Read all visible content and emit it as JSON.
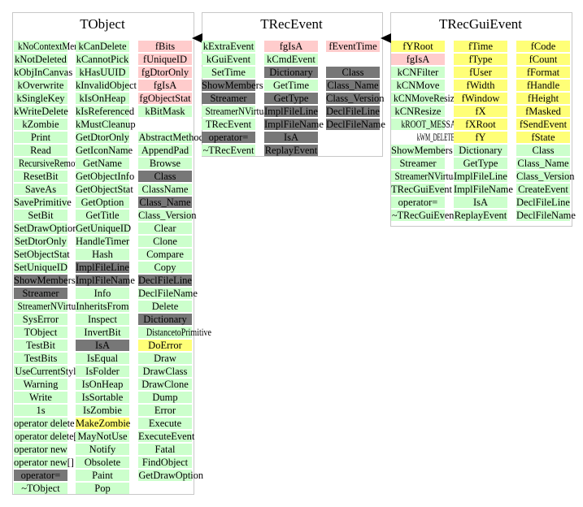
{
  "classes": [
    {
      "name": "TObject",
      "columns": [
        [
          [
            "kNoContextMenu",
            "g"
          ],
          [
            "kNotDeleted",
            "g"
          ],
          [
            "kObjInCanvas",
            "g"
          ],
          [
            "kOverwrite",
            "g"
          ],
          [
            "kSingleKey",
            "g"
          ],
          [
            "kWriteDelete",
            "g"
          ],
          [
            "kZombie",
            "g"
          ],
          [
            "Print",
            "g"
          ],
          [
            "Read",
            "g"
          ],
          [
            "RecursiveRemove",
            "g"
          ],
          [
            "ResetBit",
            "g"
          ],
          [
            "SaveAs",
            "g"
          ],
          [
            "SavePrimitive",
            "g"
          ],
          [
            "SetBit",
            "g"
          ],
          [
            "SetDrawOption",
            "g"
          ],
          [
            "SetDtorOnly",
            "g"
          ],
          [
            "SetObjectStat",
            "g"
          ],
          [
            "SetUniqueID",
            "g"
          ],
          [
            "ShowMembers",
            "d"
          ],
          [
            "Streamer",
            "d"
          ],
          [
            "StreamerNVirtual",
            "g"
          ],
          [
            "SysError",
            "g"
          ],
          [
            "TObject",
            "g"
          ],
          [
            "TestBit",
            "g"
          ],
          [
            "TestBits",
            "g"
          ],
          [
            "UseCurrentStyle",
            "g"
          ],
          [
            "Warning",
            "g"
          ],
          [
            "Write",
            "g"
          ],
          [
            "1s",
            "g"
          ],
          [
            "operator delete",
            "g"
          ],
          [
            "operator delete[]",
            "g"
          ],
          [
            "operator new",
            "g"
          ],
          [
            "operator new[]",
            "g"
          ],
          [
            "operator=",
            "d"
          ],
          [
            "~TObject",
            "g"
          ]
        ],
        [
          [
            "kCanDelete",
            "g"
          ],
          [
            "kCannotPick",
            "g"
          ],
          [
            "kHasUUID",
            "g"
          ],
          [
            "kInvalidObject",
            "g"
          ],
          [
            "kIsOnHeap",
            "g"
          ],
          [
            "kIsReferenced",
            "g"
          ],
          [
            "kMustCleanup",
            "g"
          ],
          [
            "GetDtorOnly",
            "g"
          ],
          [
            "GetIconName",
            "g"
          ],
          [
            "GetName",
            "g"
          ],
          [
            "GetObjectInfo",
            "g"
          ],
          [
            "GetObjectStat",
            "g"
          ],
          [
            "GetOption",
            "g"
          ],
          [
            "GetTitle",
            "g"
          ],
          [
            "GetUniqueID",
            "g"
          ],
          [
            "HandleTimer",
            "g"
          ],
          [
            "Hash",
            "g"
          ],
          [
            "ImplFileLine",
            "d"
          ],
          [
            "ImplFileName",
            "d"
          ],
          [
            "Info",
            "g"
          ],
          [
            "InheritsFrom",
            "g"
          ],
          [
            "Inspect",
            "g"
          ],
          [
            "InvertBit",
            "g"
          ],
          [
            "IsA",
            "d"
          ],
          [
            "IsEqual",
            "g"
          ],
          [
            "IsFolder",
            "g"
          ],
          [
            "IsOnHeap",
            "g"
          ],
          [
            "IsSortable",
            "g"
          ],
          [
            "IsZombie",
            "g"
          ],
          [
            "MakeZombie",
            "y"
          ],
          [
            "MayNotUse",
            "g"
          ],
          [
            "Notify",
            "g"
          ],
          [
            "Obsolete",
            "g"
          ],
          [
            "Paint",
            "g"
          ],
          [
            "Pop",
            "g"
          ]
        ],
        [
          [
            "fBits",
            "p"
          ],
          [
            "fUniqueID",
            "p"
          ],
          [
            "fgDtorOnly",
            "p"
          ],
          [
            "fgIsA",
            "p"
          ],
          [
            "fgObjectStat",
            "p"
          ],
          [
            "kBitMask",
            "g"
          ],
          [
            "",
            ""
          ],
          [
            "AbstractMethod",
            "g"
          ],
          [
            "AppendPad",
            "g"
          ],
          [
            "Browse",
            "g"
          ],
          [
            "Class",
            "d"
          ],
          [
            "ClassName",
            "g"
          ],
          [
            "Class_Name",
            "d"
          ],
          [
            "Class_Version",
            "g"
          ],
          [
            "Clear",
            "g"
          ],
          [
            "Clone",
            "g"
          ],
          [
            "Compare",
            "g"
          ],
          [
            "Copy",
            "g"
          ],
          [
            "DeclFileLine",
            "d"
          ],
          [
            "DeclFileName",
            "g"
          ],
          [
            "Delete",
            "g"
          ],
          [
            "Dictionary",
            "d"
          ],
          [
            "DistancetoPrimitive",
            "g"
          ],
          [
            "DoError",
            "y"
          ],
          [
            "Draw",
            "g"
          ],
          [
            "DrawClass",
            "g"
          ],
          [
            "DrawClone",
            "g"
          ],
          [
            "Dump",
            "g"
          ],
          [
            "Error",
            "g"
          ],
          [
            "Execute",
            "g"
          ],
          [
            "ExecuteEvent",
            "g"
          ],
          [
            "Fatal",
            "g"
          ],
          [
            "FindObject",
            "g"
          ],
          [
            "GetDrawOption",
            "g"
          ]
        ]
      ]
    },
    {
      "name": "TRecEvent",
      "columns": [
        [
          [
            "kExtraEvent",
            "g"
          ],
          [
            "kGuiEvent",
            "g"
          ],
          [
            "SetTime",
            "g"
          ],
          [
            "ShowMembers",
            "d"
          ],
          [
            "Streamer",
            "d"
          ],
          [
            "StreamerNVirtual",
            "g"
          ],
          [
            "TRecEvent",
            "g"
          ],
          [
            "operator=",
            "d"
          ],
          [
            "~TRecEvent",
            "g"
          ]
        ],
        [
          [
            "fgIsA",
            "p"
          ],
          [
            "kCmdEvent",
            "g"
          ],
          [
            "Dictionary",
            "d"
          ],
          [
            "GetTime",
            "g"
          ],
          [
            "GetType",
            "d"
          ],
          [
            "ImplFileLine",
            "d"
          ],
          [
            "ImplFileName",
            "d"
          ],
          [
            "IsA",
            "d"
          ],
          [
            "ReplayEvent",
            "d"
          ]
        ],
        [
          [
            "fEventTime",
            "p"
          ],
          [
            "",
            ""
          ],
          [
            "Class",
            "d"
          ],
          [
            "Class_Name",
            "d"
          ],
          [
            "Class_Version",
            "d"
          ],
          [
            "DeclFileLine",
            "d"
          ],
          [
            "DeclFileName",
            "d"
          ]
        ]
      ]
    },
    {
      "name": "TRecGuiEvent",
      "columns": [
        [
          [
            "fYRoot",
            "y"
          ],
          [
            "fgIsA",
            "p"
          ],
          [
            "kCNFilter",
            "g"
          ],
          [
            "kCNMove",
            "g"
          ],
          [
            "kCNMoveResize",
            "g"
          ],
          [
            "kCNResize",
            "g"
          ],
          [
            "kROOT_MESSAGE",
            "g"
          ],
          [
            "kWM_DELETE_WINDOW",
            "w"
          ],
          [
            "ShowMembers",
            "g"
          ],
          [
            "Streamer",
            "g"
          ],
          [
            "StreamerNVirtual",
            "g"
          ],
          [
            "TRecGuiEvent",
            "g"
          ],
          [
            "operator=",
            "g"
          ],
          [
            "~TRecGuiEvent",
            "g"
          ]
        ],
        [
          [
            "fTime",
            "y"
          ],
          [
            "fType",
            "y"
          ],
          [
            "fUser",
            "y"
          ],
          [
            "fWidth",
            "y"
          ],
          [
            "fWindow",
            "y"
          ],
          [
            "fX",
            "y"
          ],
          [
            "fXRoot",
            "y"
          ],
          [
            "fY",
            "y"
          ],
          [
            "Dictionary",
            "g"
          ],
          [
            "GetType",
            "g"
          ],
          [
            "ImplFileLine",
            "g"
          ],
          [
            "ImplFileName",
            "g"
          ],
          [
            "IsA",
            "g"
          ],
          [
            "ReplayEvent",
            "g"
          ]
        ],
        [
          [
            "fCode",
            "y"
          ],
          [
            "fCount",
            "y"
          ],
          [
            "fFormat",
            "y"
          ],
          [
            "fHandle",
            "y"
          ],
          [
            "fHeight",
            "y"
          ],
          [
            "fMasked",
            "y"
          ],
          [
            "fSendEvent",
            "y"
          ],
          [
            "fState",
            "y"
          ],
          [
            "Class",
            "g"
          ],
          [
            "Class_Name",
            "g"
          ],
          [
            "Class_Version",
            "g"
          ],
          [
            "CreateEvent",
            "g"
          ],
          [
            "DeclFileLine",
            "g"
          ],
          [
            "DeclFileName",
            "g"
          ]
        ]
      ]
    }
  ]
}
